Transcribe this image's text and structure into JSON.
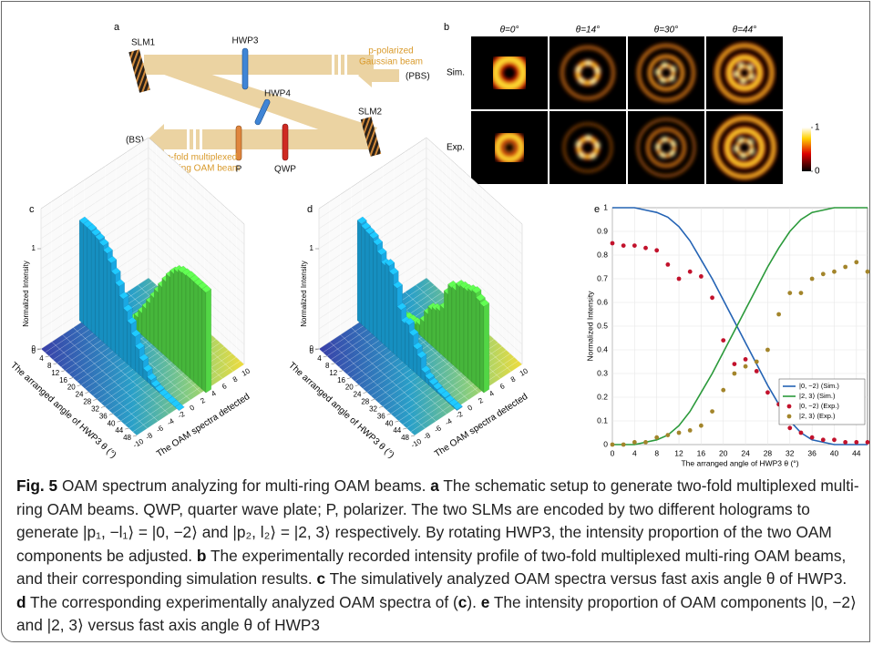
{
  "panels": {
    "a": {
      "letter": "a",
      "labels": {
        "slm1": "SLM1",
        "hwp3": "HWP3",
        "input1": "p-polarized",
        "input2": "Gaussian beam",
        "pbs": "(PBS)",
        "hwp4": "HWP4",
        "slm2": "SLM2",
        "bs": "(BS)",
        "output1": "two-fold multiplexed",
        "output2": "multi-ring OAM beam",
        "p": "P",
        "qwp": "QWP"
      }
    },
    "b": {
      "letter": "b",
      "columns": [
        "θ=0°",
        "θ=14°",
        "θ=30°",
        "θ=44°"
      ],
      "rows": [
        "Sim.",
        "Exp."
      ],
      "cbticks": [
        0,
        1
      ]
    },
    "c": {
      "letter": "c",
      "type": "bar3d",
      "zlabel": "Normalized Intensity",
      "xlabel": "The arranged angle of HWP3 θ (°)",
      "ylabel": "The OAM spectra detected",
      "x": [
        0,
        2,
        4,
        6,
        8,
        10,
        12,
        14,
        16,
        18,
        20,
        22,
        24,
        26,
        28,
        30,
        32,
        34,
        36,
        38,
        40,
        42,
        44,
        46,
        48
      ],
      "xlim": [
        0,
        48
      ],
      "xticks": [
        0,
        4,
        8,
        12,
        16,
        20,
        24,
        28,
        32,
        36,
        40,
        44,
        48
      ],
      "ylim": [
        -10,
        10
      ],
      "yticks": [
        -10,
        -8,
        -6,
        -4,
        -2,
        0,
        2,
        4,
        6,
        8,
        10
      ],
      "zlim": [
        0,
        1
      ],
      "zticks": [
        0,
        1
      ],
      "series": [
        {
          "at": -2,
          "color": "#1aa8e2",
          "values": [
            1,
            1,
            1,
            0.99,
            0.98,
            0.96,
            0.92,
            0.86,
            0.78,
            0.7,
            0.61,
            0.52,
            0.43,
            0.34,
            0.25,
            0.17,
            0.1,
            0.05,
            0.02,
            0.01,
            0,
            0,
            0,
            0,
            0
          ]
        },
        {
          "at": 3,
          "color": "#52d645",
          "values": [
            0,
            0,
            0,
            0.01,
            0.02,
            0.04,
            0.08,
            0.14,
            0.22,
            0.3,
            0.39,
            0.48,
            0.57,
            0.66,
            0.75,
            0.83,
            0.9,
            0.95,
            0.98,
            0.99,
            1,
            1,
            1,
            1,
            1
          ]
        }
      ]
    },
    "d": {
      "letter": "d",
      "type": "bar3d",
      "zlabel": "Normalized Intensity",
      "xlabel": "The arranged angle of HWP3 θ (°)",
      "ylabel": "The OAM spectra detected",
      "x": [
        0,
        2,
        4,
        6,
        8,
        10,
        12,
        14,
        16,
        18,
        20,
        22,
        24,
        26,
        28,
        30,
        32,
        34,
        36,
        38,
        40,
        42,
        44,
        46,
        48
      ],
      "xlim": [
        0,
        48
      ],
      "xticks": [
        0,
        4,
        8,
        12,
        16,
        20,
        24,
        28,
        32,
        36,
        40,
        44,
        48
      ],
      "ylim": [
        -10,
        10
      ],
      "yticks": [
        -10,
        -8,
        -6,
        -4,
        -2,
        0,
        2,
        4,
        6,
        8,
        10
      ],
      "zlim": [
        0,
        1
      ],
      "zticks": [
        0,
        1
      ],
      "series": [
        {
          "at": -2,
          "color": "#1aa8e2",
          "values": [
            1,
            0.98,
            0.97,
            0.96,
            0.93,
            0.87,
            0.8,
            0.83,
            0.78,
            0.68,
            0.5,
            0.4,
            0.42,
            0.35,
            0.25,
            0.2,
            0.09,
            0.06,
            0.04,
            0.03,
            0.02,
            0.02,
            0.01,
            0.01,
            0.01
          ]
        },
        {
          "at": 3,
          "color": "#52d645",
          "values": [
            0,
            0,
            0.01,
            0.01,
            0.03,
            0.05,
            0.06,
            0.07,
            0.1,
            0.17,
            0.28,
            0.36,
            0.39,
            0.42,
            0.48,
            0.66,
            0.76,
            0.77,
            0.84,
            0.86,
            0.87,
            0.9,
            0.92,
            0.88,
            0.86
          ]
        }
      ]
    },
    "e": {
      "letter": "e",
      "type": "line",
      "xlabel": "The arranged angle of HWP3 θ (°)",
      "ylabel": "Normalized Intensity",
      "x": [
        0,
        2,
        4,
        6,
        8,
        10,
        12,
        14,
        16,
        18,
        20,
        22,
        24,
        26,
        28,
        30,
        32,
        34,
        36,
        38,
        40,
        42,
        44,
        46
      ],
      "xlim": [
        0,
        46
      ],
      "xticks": [
        0,
        4,
        8,
        12,
        16,
        20,
        24,
        28,
        32,
        36,
        40,
        44
      ],
      "ylim": [
        0,
        1
      ],
      "yticks": [
        0,
        0.1,
        0.2,
        0.3,
        0.4,
        0.5,
        0.6,
        0.7,
        0.8,
        0.9,
        1
      ],
      "grid": true,
      "legend": "lower right",
      "series": [
        {
          "name": "|0, −2⟩ (Sim.)",
          "type": "line",
          "color": "#2463b4",
          "values": [
            1,
            1,
            1,
            0.99,
            0.98,
            0.96,
            0.92,
            0.86,
            0.78,
            0.7,
            0.61,
            0.52,
            0.43,
            0.34,
            0.25,
            0.17,
            0.1,
            0.05,
            0.02,
            0.01,
            0,
            0,
            0,
            0
          ]
        },
        {
          "name": "|2, 3⟩ (Sim.)",
          "type": "line",
          "color": "#2b9a3b",
          "values": [
            0,
            0,
            0,
            0.01,
            0.02,
            0.04,
            0.08,
            0.14,
            0.22,
            0.3,
            0.39,
            0.48,
            0.57,
            0.66,
            0.75,
            0.83,
            0.9,
            0.95,
            0.98,
            0.99,
            1,
            1,
            1,
            1
          ]
        },
        {
          "name": "|0, −2⟩ (Exp.)",
          "type": "scatter",
          "color": "#c2122c",
          "values": [
            0.85,
            0.84,
            0.84,
            0.83,
            0.82,
            0.76,
            0.7,
            0.73,
            0.71,
            0.62,
            0.44,
            0.34,
            0.36,
            0.31,
            0.22,
            0.17,
            0.07,
            0.05,
            0.03,
            0.02,
            0.02,
            0.01,
            0.01,
            0.01
          ]
        },
        {
          "name": "|2, 3⟩ (Exp.)",
          "type": "scatter",
          "color": "#a3852b",
          "values": [
            0,
            0,
            0.01,
            0.01,
            0.03,
            0.04,
            0.05,
            0.06,
            0.08,
            0.14,
            0.23,
            0.3,
            0.33,
            0.35,
            0.4,
            0.55,
            0.64,
            0.64,
            0.7,
            0.72,
            0.73,
            0.75,
            0.77,
            0.73
          ]
        }
      ]
    }
  },
  "caption": {
    "parts": [
      "Fig. 5",
      " OAM spectrum analyzing for multi-ring OAM beams. ",
      "a",
      " The schematic setup to generate two-fold multiplexed multi-ring OAM beams. QWP, quarter wave plate; P, polarizer. The two SLMs are encoded by two different holograms to generate |p₁, −l₁⟩ = |0, −2⟩ and |p₂, l₂⟩ = |2, 3⟩ respectively. By rotating HWP3, the intensity proportion of the two OAM components be adjusted. ",
      "b",
      " The experimentally recorded intensity profile of two-fold multiplexed multi-ring OAM beams, and their corresponding simulation results. ",
      "c",
      " The simulatively analyzed OAM spectra versus fast axis angle θ of HWP3. ",
      "d",
      " The corresponding experimentally analyzed OAM spectra of (",
      "c",
      "). ",
      "e",
      " The intensity proportion of OAM components |0, −2⟩ and |2, 3⟩ versus fast axis angle θ of HWP3"
    ]
  }
}
